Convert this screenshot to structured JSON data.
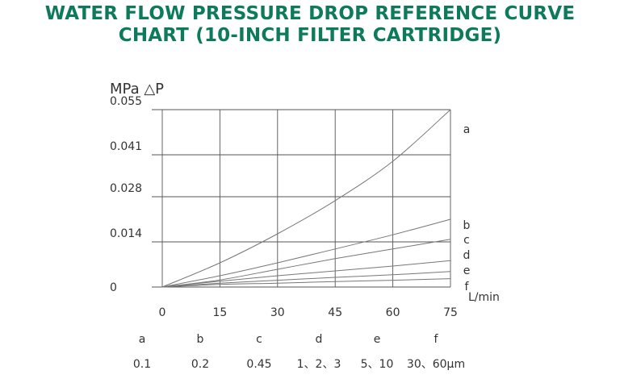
{
  "title": {
    "line1": "WATER FLOW PRESSURE DROP REFERENCE CURVE",
    "line2": "CHART (10-INCH FILTER CARTRIDGE)"
  },
  "chart_data": {
    "type": "line",
    "ylabel": "MPa △P",
    "xlabel": "L/min",
    "xlim": [
      0,
      75
    ],
    "ylim": [
      0,
      0.055
    ],
    "x_ticks": [
      "0",
      "15",
      "30",
      "45",
      "60",
      "75"
    ],
    "y_ticks": [
      "0",
      "0.014",
      "0.028",
      "0.041",
      "0.055"
    ],
    "grid": true,
    "x": [
      0,
      15,
      30,
      45,
      60,
      75
    ],
    "series": [
      {
        "name": "a",
        "values": [
          0,
          0.0075,
          0.0165,
          0.0268,
          0.039,
          0.055
        ]
      },
      {
        "name": "b",
        "values": [
          0,
          0.0035,
          0.0075,
          0.0118,
          0.0162,
          0.021
        ]
      },
      {
        "name": "c",
        "values": [
          0,
          0.0022,
          0.0055,
          0.0088,
          0.0118,
          0.0148
        ]
      },
      {
        "name": "d",
        "values": [
          0,
          0.0018,
          0.0035,
          0.005,
          0.0065,
          0.0082
        ]
      },
      {
        "name": "e",
        "values": [
          0,
          0.0012,
          0.0021,
          0.003,
          0.0038,
          0.0048
        ]
      },
      {
        "name": "f",
        "values": [
          0,
          0.0008,
          0.0012,
          0.0017,
          0.0021,
          0.0026
        ]
      }
    ],
    "legend_table": {
      "letters": [
        "a",
        "b",
        "c",
        "d",
        "e",
        "f"
      ],
      "ratings": [
        "0.1",
        "0.2",
        "0.45",
        "1、2、3",
        "5、10",
        "30、60μm"
      ]
    }
  }
}
